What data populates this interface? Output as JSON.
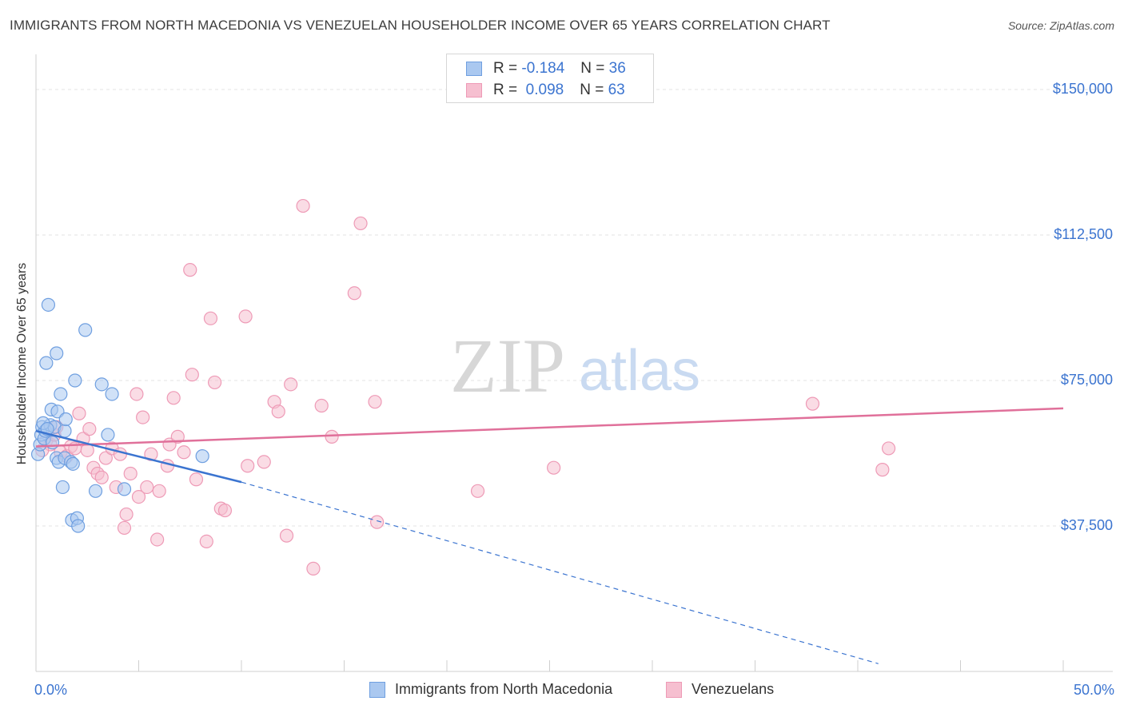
{
  "title": "IMMIGRANTS FROM NORTH MACEDONIA VS VENEZUELAN HOUSEHOLDER INCOME OVER 65 YEARS CORRELATION CHART",
  "source": "Source: ZipAtlas.com",
  "watermark": {
    "zip": "ZIP",
    "atlas": "atlas"
  },
  "legend": {
    "rows": [
      {
        "r_label": "R =",
        "r_value": "-0.184",
        "n_label": "N =",
        "n_value": "36"
      },
      {
        "r_label": "R =",
        "r_value": "0.098",
        "n_label": "N =",
        "n_value": "63"
      }
    ]
  },
  "bottom_legend": {
    "series1": "Immigrants from North Macedonia",
    "series2": "Venezuelans"
  },
  "colors": {
    "blue_fill": "#aac8f0",
    "blue_stroke": "#6f9fe0",
    "blue_line": "#3b74d0",
    "pink_fill": "#f6bfd0",
    "pink_stroke": "#ee9ab6",
    "pink_line": "#e0709a",
    "axis_text": "#3b74d0",
    "grid": "#e3e3e3"
  },
  "chart_data": {
    "type": "scatter",
    "title": "IMMIGRANTS FROM NORTH MACEDONIA VS VENEZUELAN HOUSEHOLDER INCOME OVER 65 YEARS CORRELATION CHART",
    "xlabel": "",
    "ylabel": "Householder Income Over 65 years",
    "xlim": [
      0,
      50
    ],
    "ylim": [
      0,
      157000
    ],
    "x_tick_labels": [
      {
        "x": 0,
        "label": "0.0%"
      },
      {
        "x": 50,
        "label": "50.0%"
      }
    ],
    "y_ticks": [
      {
        "y": 37500,
        "label": "$37,500"
      },
      {
        "y": 75000,
        "label": "$75,000"
      },
      {
        "y": 112500,
        "label": "$112,500"
      },
      {
        "y": 150000,
        "label": "$150,000"
      }
    ],
    "series": [
      {
        "name": "Immigrants from North Macedonia",
        "r": -0.184,
        "n": 36,
        "points": [
          [
            0.1,
            56000
          ],
          [
            0.2,
            58500
          ],
          [
            0.25,
            61000
          ],
          [
            0.3,
            63000
          ],
          [
            0.4,
            60000
          ],
          [
            0.45,
            62000
          ],
          [
            0.5,
            79500
          ],
          [
            0.6,
            94500
          ],
          [
            0.7,
            63500
          ],
          [
            0.75,
            67500
          ],
          [
            0.8,
            59000
          ],
          [
            0.9,
            63000
          ],
          [
            1.0,
            82000
          ],
          [
            1.0,
            55000
          ],
          [
            1.05,
            67000
          ],
          [
            1.1,
            54000
          ],
          [
            1.2,
            71500
          ],
          [
            1.3,
            47500
          ],
          [
            1.4,
            62000
          ],
          [
            1.4,
            55000
          ],
          [
            1.45,
            65000
          ],
          [
            1.7,
            54000
          ],
          [
            1.75,
            39000
          ],
          [
            1.8,
            53500
          ],
          [
            1.9,
            75000
          ],
          [
            2.0,
            39500
          ],
          [
            2.05,
            37500
          ],
          [
            2.4,
            88000
          ],
          [
            2.9,
            46500
          ],
          [
            3.2,
            74000
          ],
          [
            3.5,
            61000
          ],
          [
            3.7,
            71500
          ],
          [
            4.3,
            47000
          ],
          [
            8.1,
            55500
          ],
          [
            0.35,
            64000
          ],
          [
            0.55,
            62500
          ]
        ],
        "trend_solid": {
          "x": [
            0,
            10
          ],
          "y": [
            62000,
            48800
          ]
        },
        "trend_dashed": {
          "x": [
            10,
            41
          ],
          "y": [
            48800,
            2000
          ]
        }
      },
      {
        "name": "Venezuelans",
        "r": 0.098,
        "n": 63,
        "points": [
          [
            0.5,
            59500
          ],
          [
            0.7,
            58500
          ],
          [
            0.9,
            61000
          ],
          [
            1.0,
            63000
          ],
          [
            1.2,
            56500
          ],
          [
            1.5,
            55500
          ],
          [
            1.7,
            58000
          ],
          [
            1.9,
            57500
          ],
          [
            2.1,
            66500
          ],
          [
            2.3,
            60000
          ],
          [
            2.5,
            57000
          ],
          [
            2.8,
            52500
          ],
          [
            3.0,
            51000
          ],
          [
            3.2,
            50000
          ],
          [
            3.4,
            55000
          ],
          [
            3.7,
            57500
          ],
          [
            3.9,
            47500
          ],
          [
            4.1,
            56000
          ],
          [
            4.3,
            37000
          ],
          [
            4.4,
            40500
          ],
          [
            4.6,
            51000
          ],
          [
            4.9,
            71500
          ],
          [
            5.0,
            45000
          ],
          [
            5.2,
            65500
          ],
          [
            5.4,
            47500
          ],
          [
            5.6,
            56000
          ],
          [
            5.9,
            34000
          ],
          [
            6.0,
            46500
          ],
          [
            6.4,
            53000
          ],
          [
            6.5,
            58500
          ],
          [
            6.7,
            70500
          ],
          [
            6.9,
            60500
          ],
          [
            7.2,
            56500
          ],
          [
            7.5,
            103500
          ],
          [
            7.6,
            76500
          ],
          [
            7.8,
            49500
          ],
          [
            8.3,
            33500
          ],
          [
            8.5,
            91000
          ],
          [
            8.7,
            74500
          ],
          [
            9.0,
            42000
          ],
          [
            9.2,
            41500
          ],
          [
            10.2,
            91500
          ],
          [
            10.3,
            53000
          ],
          [
            11.1,
            54000
          ],
          [
            11.6,
            69500
          ],
          [
            11.8,
            67000
          ],
          [
            12.2,
            35000
          ],
          [
            12.4,
            74000
          ],
          [
            13.0,
            120000
          ],
          [
            13.5,
            26500
          ],
          [
            13.9,
            68500
          ],
          [
            14.4,
            60500
          ],
          [
            15.5,
            97500
          ],
          [
            15.8,
            115500
          ],
          [
            16.5,
            69500
          ],
          [
            16.6,
            38500
          ],
          [
            21.5,
            46500
          ],
          [
            25.2,
            52500
          ],
          [
            37.8,
            69000
          ],
          [
            41.2,
            52000
          ],
          [
            41.5,
            57500
          ],
          [
            0.3,
            57000
          ],
          [
            2.6,
            62500
          ]
        ],
        "trend_solid": {
          "x": [
            0,
            50
          ],
          "y": [
            58000,
            67800
          ]
        }
      }
    ]
  }
}
